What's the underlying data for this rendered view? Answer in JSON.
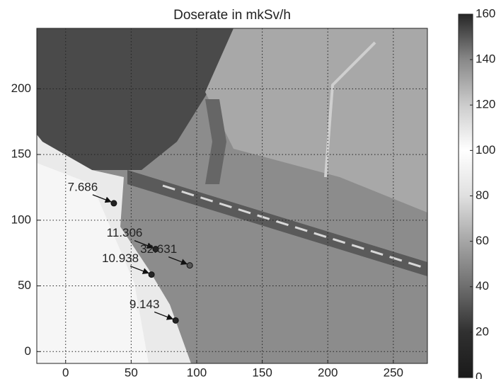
{
  "chart_data": {
    "type": "scatter",
    "title": "Doserate in mkSv/h",
    "x": [
      36.8,
      68.7,
      94.7,
      65.5,
      83.9
    ],
    "y": [
      112.9,
      78,
      65.6,
      58.6,
      23.7
    ],
    "values": [
      7.686,
      11.306,
      32.631,
      10.938,
      9.143
    ],
    "xlim": [
      -22,
      276
    ],
    "ylim": [
      -9,
      246
    ],
    "xticks": [
      0,
      50,
      100,
      150,
      200,
      250
    ],
    "yticks": [
      0,
      50,
      100,
      150,
      200
    ],
    "grid": true,
    "colorbar": {
      "lim": [
        0,
        160
      ],
      "ticks": [
        0,
        20,
        40,
        60,
        80,
        100,
        120,
        140,
        160
      ]
    },
    "colormap": [
      [
        0,
        "#1a1a1a"
      ],
      [
        20,
        "#303030"
      ],
      [
        40,
        "#6e6e6e"
      ],
      [
        60,
        "#a6a6a6"
      ],
      [
        80,
        "#e0e0e0"
      ],
      [
        100,
        "#ffffff"
      ],
      [
        120,
        "#cccccc"
      ],
      [
        140,
        "#888888"
      ],
      [
        160,
        "#262626"
      ]
    ]
  }
}
